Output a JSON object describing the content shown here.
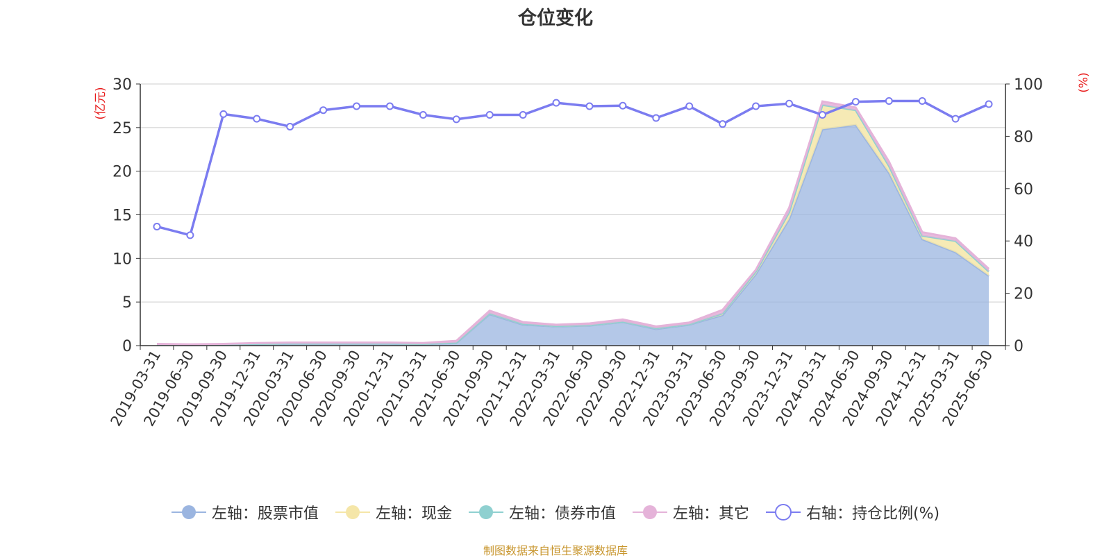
{
  "title": "仓位变化",
  "source": "制图数据来自恒生聚源数据库",
  "colors": {
    "stock": "#9bb5e0",
    "cash": "#f5e6a8",
    "bond": "#8fd0d0",
    "other": "#e5b3d9",
    "ratio": "#7b7cf0",
    "axis_unit": "#e81a1a"
  },
  "legend": [
    {
      "label": "左轴：股票市值",
      "color": "#9bb5e0",
      "style": "area"
    },
    {
      "label": "左轴：现金",
      "color": "#f5e6a8",
      "style": "area"
    },
    {
      "label": "左轴：债券市值",
      "color": "#8fd0d0",
      "style": "area"
    },
    {
      "label": "左轴：其它",
      "color": "#e5b3d9",
      "style": "area"
    },
    {
      "label": "右轴：持仓比例(%)",
      "color": "#7b7cf0",
      "style": "line"
    }
  ],
  "chart_data": {
    "type": "area",
    "title": "仓位变化",
    "ylabel": "(亿元)",
    "y2label": "(%)",
    "ylim": [
      0,
      30
    ],
    "y2lim": [
      0,
      100
    ],
    "yticks": [
      0,
      5,
      10,
      15,
      20,
      25,
      30
    ],
    "y2ticks": [
      0,
      20,
      40,
      60,
      80,
      100
    ],
    "grid": true,
    "legend_position": "bottom",
    "categories": [
      "2019-03-31",
      "2019-06-30",
      "2019-09-30",
      "2019-12-31",
      "2020-03-31",
      "2020-06-30",
      "2020-09-30",
      "2020-12-31",
      "2021-03-31",
      "2021-06-30",
      "2021-09-30",
      "2021-12-31",
      "2022-03-31",
      "2022-06-30",
      "2022-09-30",
      "2022-12-31",
      "2023-03-31",
      "2023-06-30",
      "2023-09-30",
      "2023-12-31",
      "2024-03-31",
      "2024-06-30",
      "2024-09-30",
      "2024-12-31",
      "2025-03-31",
      "2025-06-30"
    ],
    "series": [
      {
        "name": "左轴：股票市值",
        "axis": "left",
        "stacked": true,
        "values": [
          0.1,
          0.05,
          0.1,
          0.15,
          0.2,
          0.2,
          0.2,
          0.2,
          0.15,
          0.3,
          3.6,
          2.4,
          2.2,
          2.3,
          2.7,
          1.9,
          2.4,
          3.5,
          8.2,
          14.5,
          24.8,
          25.3,
          19.8,
          12.2,
          10.7,
          8.0
        ]
      },
      {
        "name": "左轴：现金",
        "axis": "left",
        "stacked": true,
        "values": [
          0.05,
          0.05,
          0.05,
          0.05,
          0.05,
          0.05,
          0.05,
          0.05,
          0.05,
          0.05,
          0.1,
          0.1,
          0.05,
          0.05,
          0.05,
          0.1,
          0.05,
          0.2,
          0.3,
          0.8,
          2.8,
          1.7,
          0.8,
          0.4,
          1.3,
          0.5
        ]
      },
      {
        "name": "左轴：债券市值",
        "axis": "left",
        "stacked": true,
        "values": [
          0,
          0,
          0,
          0,
          0,
          0,
          0,
          0,
          0,
          0,
          0,
          0,
          0,
          0,
          0,
          0,
          0,
          0,
          0,
          0,
          0,
          0,
          0,
          0,
          0,
          0
        ]
      },
      {
        "name": "左轴：其它",
        "axis": "left",
        "stacked": true,
        "values": [
          0.05,
          0.05,
          0.05,
          0.1,
          0.1,
          0.1,
          0.1,
          0.1,
          0.1,
          0.2,
          0.3,
          0.2,
          0.15,
          0.2,
          0.25,
          0.2,
          0.2,
          0.4,
          0.2,
          0.5,
          0.4,
          0.3,
          0.5,
          0.4,
          0.3,
          0.3
        ]
      },
      {
        "name": "右轴：持仓比例(%)",
        "axis": "right",
        "type": "line",
        "values": [
          45.5,
          42.2,
          88.5,
          86.7,
          83.7,
          90.0,
          91.5,
          91.5,
          88.2,
          86.5,
          88.2,
          88.2,
          92.8,
          91.5,
          91.7,
          87.0,
          91.5,
          84.7,
          91.5,
          92.5,
          88.2,
          93.2,
          93.5,
          93.5,
          86.7,
          92.3
        ]
      }
    ]
  }
}
